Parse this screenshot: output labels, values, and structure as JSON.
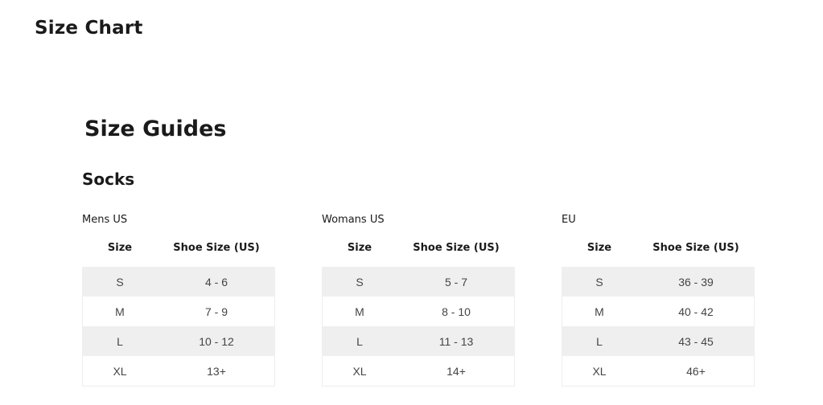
{
  "title": "Size Chart",
  "heading": "Size Guides",
  "category": "Socks",
  "tables": [
    {
      "label": "Mens US",
      "headers": [
        "Size",
        "Shoe Size (US)"
      ],
      "rows": [
        [
          "S",
          "4 - 6"
        ],
        [
          "M",
          "7 - 9"
        ],
        [
          "L",
          "10 - 12"
        ],
        [
          "XL",
          "13+"
        ]
      ]
    },
    {
      "label": "Womans US",
      "headers": [
        "Size",
        "Shoe Size (US)"
      ],
      "rows": [
        [
          "S",
          "5 - 7"
        ],
        [
          "M",
          "8 - 10"
        ],
        [
          "L",
          "11 - 13"
        ],
        [
          "XL",
          "14+"
        ]
      ]
    },
    {
      "label": "EU",
      "headers": [
        "Size",
        "Shoe Size (US)"
      ],
      "rows": [
        [
          "S",
          "36 - 39"
        ],
        [
          "M",
          "40 - 42"
        ],
        [
          "L",
          "43 - 45"
        ],
        [
          "XL",
          "46+"
        ]
      ]
    }
  ]
}
